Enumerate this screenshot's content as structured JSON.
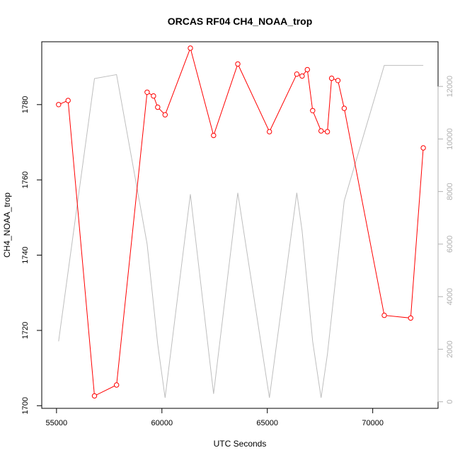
{
  "chart_data": {
    "type": "line",
    "title": "ORCAS RF04 CH4_NOAA_trop",
    "xlabel": "UTC Seconds",
    "ylabel": "CH4_NOAA_trop",
    "xlim": [
      54300,
      73100
    ],
    "ylim": [
      1699.3,
      1796.7
    ],
    "y2lim": [
      -250,
      13700
    ],
    "xticks": [
      55000,
      60000,
      65000,
      70000
    ],
    "yticks": [
      1700,
      1720,
      1740,
      1760,
      1780
    ],
    "y2ticks": [
      0,
      2000,
      4000,
      6000,
      8000,
      10000,
      12000
    ],
    "grid": false,
    "legend": "none",
    "series": [
      {
        "color": "#ff0000",
        "axis": "left",
        "markers": "open-circle",
        "x": [
          55100,
          55550,
          56800,
          57850,
          59300,
          59600,
          59800,
          60150,
          61350,
          62450,
          63600,
          65100,
          66400,
          66650,
          66900,
          67150,
          67550,
          67850,
          68050,
          68350,
          68650,
          70550,
          71800,
          72400
        ],
        "y": [
          1780.0,
          1781.1,
          1702.6,
          1705.5,
          1783.3,
          1782.3,
          1779.3,
          1777.3,
          1795.0,
          1771.8,
          1790.8,
          1772.8,
          1788.1,
          1787.6,
          1789.3,
          1778.4,
          1773.0,
          1772.8,
          1787.0,
          1786.4,
          1779.0,
          1724.0,
          1723.3,
          1768.5
        ]
      },
      {
        "color": "#bebebe",
        "axis": "right",
        "markers": "none",
        "x": [
          55100,
          56800,
          57850,
          59300,
          59800,
          60150,
          61350,
          62450,
          63600,
          65100,
          66400,
          66650,
          67150,
          67550,
          67850,
          68650,
          70550,
          72400
        ],
        "y": [
          2300,
          12300,
          12450,
          6000,
          2200,
          150,
          7900,
          300,
          7950,
          150,
          7950,
          6500,
          2300,
          150,
          1800,
          7650,
          12800,
          12800
        ]
      }
    ]
  }
}
